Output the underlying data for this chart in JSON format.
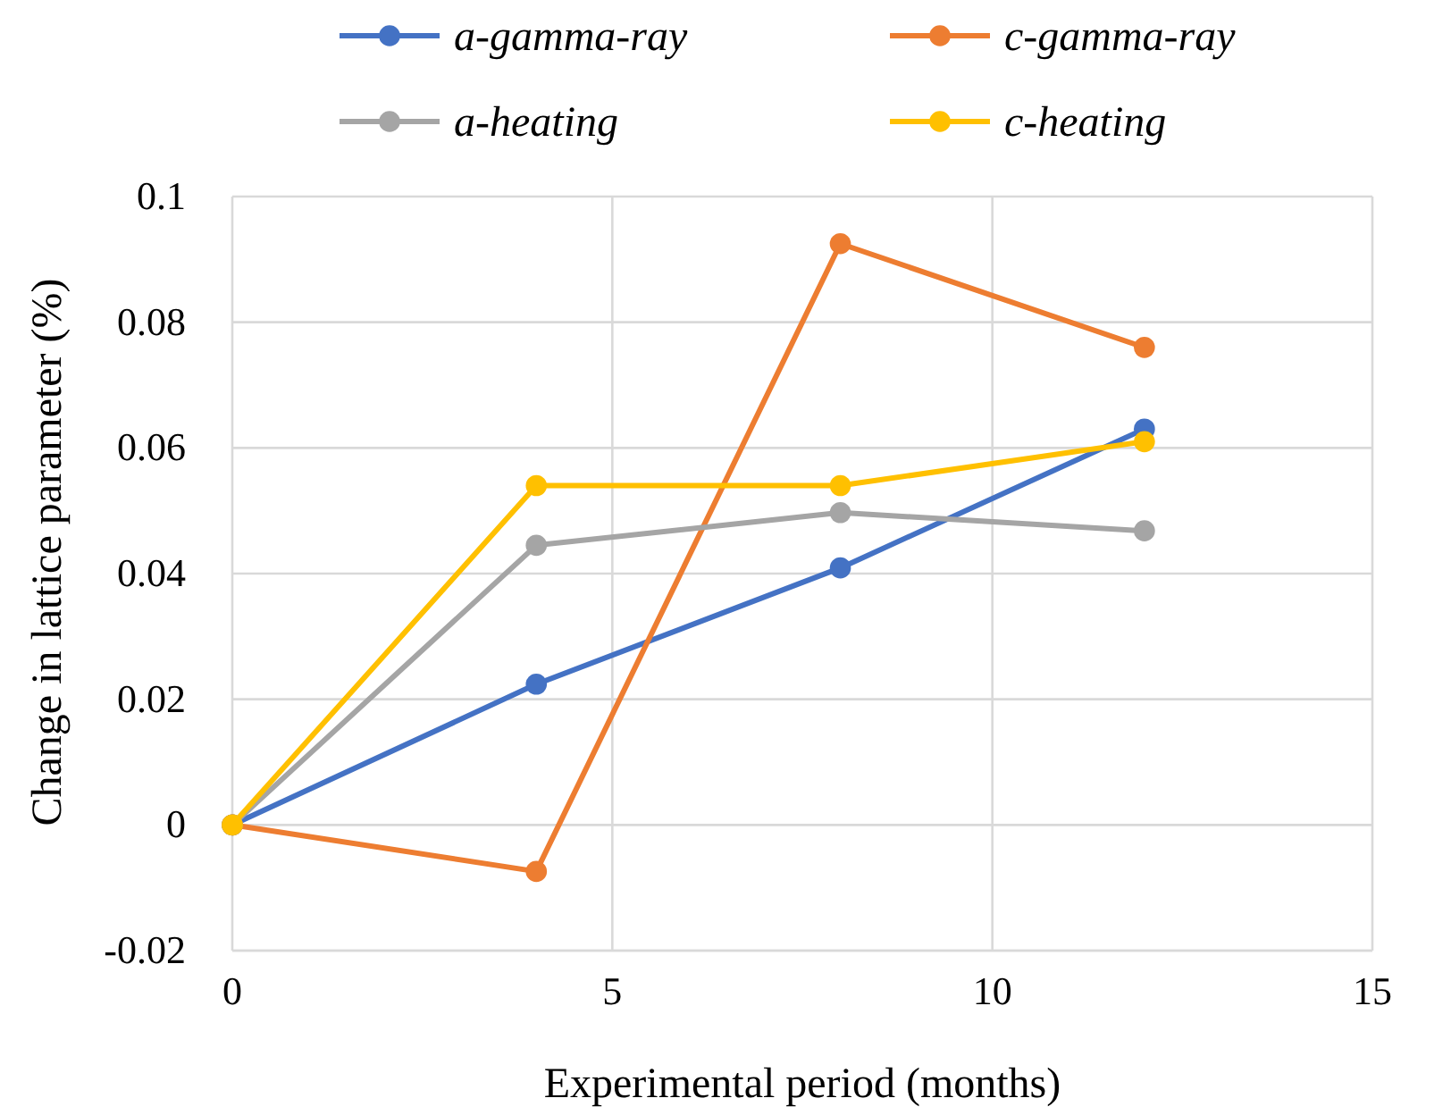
{
  "chart_data": {
    "type": "line",
    "xlabel": "Experimental period (months)",
    "ylabel": "Change in lattice parameter  (%)",
    "xlim": [
      0,
      15
    ],
    "xticks": [
      0,
      5,
      10,
      15
    ],
    "ylim": [
      -0.02,
      0.1
    ],
    "yticks": [
      -0.02,
      0,
      0.02,
      0.04,
      0.06,
      0.08,
      0.1
    ],
    "grid": true,
    "legend": "top",
    "marker": "circle",
    "line_style": "solid",
    "x": [
      0,
      4,
      8,
      12
    ],
    "series": [
      {
        "name": "a-gamma-ray",
        "color": "#4472c4",
        "values": [
          0,
          0.0224,
          0.0409,
          0.063
        ]
      },
      {
        "name": "c-gamma-ray",
        "color": "#ed7d31",
        "values": [
          0,
          -0.0074,
          0.0925,
          0.076
        ]
      },
      {
        "name": "a-heating",
        "color": "#a5a5a5",
        "values": [
          0,
          0.0445,
          0.0497,
          0.0468
        ]
      },
      {
        "name": "c-heating",
        "color": "#ffc000",
        "values": [
          0,
          0.054,
          0.054,
          0.061
        ]
      }
    ]
  }
}
